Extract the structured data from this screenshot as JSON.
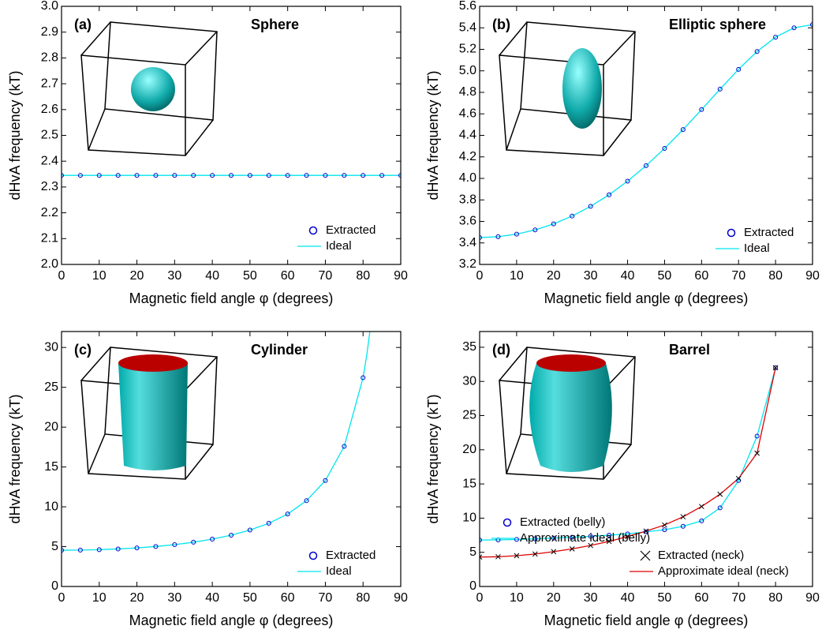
{
  "chart_data": [
    {
      "type": "line",
      "panel_label": "(a)",
      "title": "Sphere",
      "y_label": "dHvA frequency (kT)",
      "x_label": "Magnetic field angle φ (degrees)",
      "xlim": [
        0,
        90
      ],
      "xticks": [
        0,
        10,
        20,
        30,
        40,
        50,
        60,
        70,
        80,
        90
      ],
      "ylim": [
        2.0,
        3.0
      ],
      "yticks": [
        {
          "value": 2.0,
          "label": "2.0"
        },
        2.1,
        2.2,
        2.3,
        2.4,
        2.5,
        2.6,
        2.7,
        2.8,
        2.9,
        {
          "value": 3.0,
          "label": "3.0"
        }
      ],
      "series": [
        {
          "name": "Extracted",
          "color": "#0000cc",
          "marker": "o",
          "x": [
            0,
            5,
            10,
            15,
            20,
            25,
            30,
            35,
            40,
            45,
            50,
            55,
            60,
            65,
            70,
            75,
            80,
            85,
            90
          ],
          "values": [
            2.345,
            2.345,
            2.345,
            2.345,
            2.345,
            2.345,
            2.345,
            2.345,
            2.345,
            2.345,
            2.345,
            2.345,
            2.345,
            2.345,
            2.345,
            2.345,
            2.345,
            2.345,
            2.345
          ]
        },
        {
          "name": "Ideal",
          "color": "#00e5ee",
          "marker": "line",
          "x": [
            0,
            5,
            10,
            15,
            20,
            25,
            30,
            35,
            40,
            45,
            50,
            55,
            60,
            65,
            70,
            75,
            80,
            85,
            90
          ],
          "values": [
            2.345,
            2.345,
            2.345,
            2.345,
            2.345,
            2.345,
            2.345,
            2.345,
            2.345,
            2.345,
            2.345,
            2.345,
            2.345,
            2.345,
            2.345,
            2.345,
            2.345,
            2.345,
            2.345
          ]
        }
      ]
    },
    {
      "type": "line",
      "panel_label": "(b)",
      "title": "Elliptic sphere",
      "y_label": "dHvA frequency (kT)",
      "x_label": "Magnetic field angle φ (degrees)",
      "xlim": [
        0,
        90
      ],
      "xticks": [
        0,
        10,
        20,
        30,
        40,
        50,
        60,
        70,
        80,
        90
      ],
      "ylim": [
        3.2,
        5.6
      ],
      "yticks": [
        3.2,
        3.4,
        3.6,
        3.8,
        {
          "value": 4.0,
          "label": "4.0"
        },
        4.2,
        4.4,
        4.6,
        4.8,
        {
          "value": 5.0,
          "label": "5.0"
        },
        5.2,
        5.4,
        5.6
      ],
      "series": [
        {
          "name": "Extracted",
          "color": "#0000cc",
          "marker": "o",
          "x": [
            0,
            5,
            10,
            15,
            20,
            25,
            30,
            35,
            40,
            45,
            50,
            55,
            60,
            65,
            70,
            75,
            80,
            85,
            90
          ],
          "values": [
            3.45,
            3.458,
            3.482,
            3.521,
            3.577,
            3.65,
            3.74,
            3.848,
            3.974,
            4.118,
            4.279,
            4.454,
            4.64,
            4.83,
            5.014,
            5.18,
            5.313,
            5.4,
            5.43
          ]
        },
        {
          "name": "Ideal",
          "color": "#00e5ee",
          "marker": "line",
          "x": [
            0,
            5,
            10,
            15,
            20,
            25,
            30,
            35,
            40,
            45,
            50,
            55,
            60,
            65,
            70,
            75,
            80,
            85,
            90
          ],
          "values": [
            3.45,
            3.458,
            3.482,
            3.521,
            3.577,
            3.65,
            3.74,
            3.848,
            3.974,
            4.118,
            4.279,
            4.454,
            4.64,
            4.83,
            5.014,
            5.18,
            5.313,
            5.4,
            5.43
          ]
        }
      ]
    },
    {
      "type": "line",
      "panel_label": "(c)",
      "title": "Cylinder",
      "y_label": "dHvA frequency (kT)",
      "x_label": "Magnetic field angle φ (degrees)",
      "xlim": [
        0,
        90
      ],
      "xticks": [
        0,
        10,
        20,
        30,
        40,
        50,
        60,
        70,
        80,
        90
      ],
      "ylim": [
        0,
        32
      ],
      "yticks": [
        0,
        5,
        10,
        15,
        20,
        25,
        30
      ],
      "series": [
        {
          "name": "Extracted",
          "color": "#0000cc",
          "marker": "o",
          "x": [
            0,
            5,
            10,
            15,
            20,
            25,
            30,
            35,
            40,
            45,
            50,
            55,
            60,
            65,
            70,
            75,
            80
          ],
          "values": [
            4.55,
            4.567,
            4.62,
            4.711,
            4.842,
            5.02,
            5.254,
            5.555,
            5.94,
            6.435,
            7.079,
            7.933,
            9.1,
            10.77,
            13.3,
            17.58,
            26.2
          ]
        },
        {
          "name": "Ideal",
          "color": "#00e5ee",
          "marker": "line",
          "x": [
            0,
            5,
            10,
            15,
            20,
            25,
            30,
            35,
            40,
            45,
            50,
            55,
            60,
            65,
            70,
            75,
            80,
            81,
            82
          ],
          "values": [
            4.55,
            4.567,
            4.62,
            4.711,
            4.842,
            5.02,
            5.254,
            5.555,
            5.94,
            6.435,
            7.079,
            7.933,
            9.1,
            10.77,
            13.3,
            17.58,
            26.2,
            29.09,
            32.69
          ]
        }
      ]
    },
    {
      "type": "line",
      "panel_label": "(d)",
      "title": "Barrel",
      "y_label": "dHvA frequency (kT)",
      "x_label": "Magnetic field angle φ (degrees)",
      "xlim": [
        0,
        90
      ],
      "xticks": [
        0,
        10,
        20,
        30,
        40,
        50,
        60,
        70,
        80,
        90
      ],
      "ylim": [
        0,
        37.3
      ],
      "yticks": [
        0,
        5,
        10,
        15,
        20,
        25,
        30,
        35
      ],
      "series": [
        {
          "name": "Extracted (belly)",
          "color": "#0000cc",
          "marker": "o",
          "x": [
            0,
            5,
            10,
            15,
            20,
            25,
            30,
            35,
            40,
            45,
            50,
            55,
            60,
            65,
            70,
            75,
            80
          ],
          "values": [
            6.8,
            6.82,
            6.88,
            6.97,
            7.08,
            7.2,
            7.35,
            7.5,
            7.7,
            8.0,
            8.3,
            8.8,
            9.6,
            11.5,
            15.5,
            22,
            32
          ]
        },
        {
          "name": "Approximate ideal (belly)",
          "color": "#00e5ee",
          "marker": "line",
          "x": [
            0,
            5,
            10,
            15,
            20,
            25,
            30,
            35,
            40,
            45,
            50,
            55,
            60,
            65,
            70,
            75,
            80
          ],
          "values": [
            6.8,
            6.82,
            6.88,
            6.97,
            7.08,
            7.2,
            7.35,
            7.5,
            7.7,
            8.0,
            8.3,
            8.8,
            9.6,
            11.5,
            15.5,
            22,
            32
          ]
        },
        {
          "name": "Extracted (neck)",
          "color": "#000000",
          "marker": "x",
          "x": [
            0,
            5,
            10,
            15,
            20,
            25,
            30,
            35,
            40,
            45,
            50,
            55,
            60,
            65,
            70,
            75,
            80
          ],
          "values": [
            4.3,
            4.35,
            4.5,
            4.75,
            5.1,
            5.5,
            6.0,
            6.6,
            7.3,
            8.1,
            9.0,
            10.2,
            11.7,
            13.5,
            15.8,
            19.5,
            32
          ]
        },
        {
          "name": "Approximate ideal (neck)",
          "color": "#dd0000",
          "marker": "line",
          "x": [
            0,
            5,
            10,
            15,
            20,
            25,
            30,
            35,
            40,
            45,
            50,
            55,
            60,
            65,
            70,
            75,
            80
          ],
          "values": [
            4.3,
            4.35,
            4.5,
            4.75,
            5.1,
            5.5,
            6.0,
            6.6,
            7.3,
            8.1,
            9.0,
            10.2,
            11.7,
            13.5,
            15.8,
            19.5,
            32
          ]
        }
      ]
    }
  ]
}
